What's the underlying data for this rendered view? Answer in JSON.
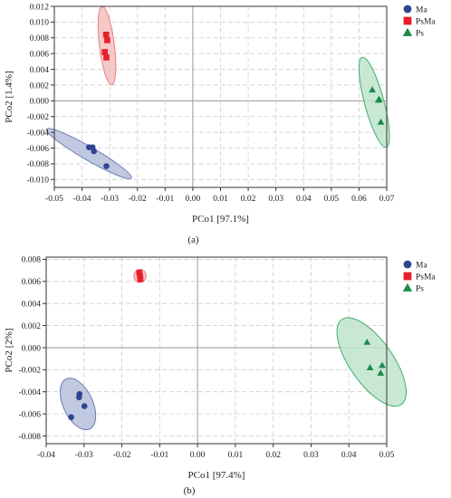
{
  "chart_data": [
    {
      "type": "scatter",
      "panel_label": "(a)",
      "xlabel": "PCo1 [97.1%]",
      "ylabel": "PCo2 [1.4%]",
      "xlim": [
        -0.05,
        0.07
      ],
      "ylim": [
        -0.011,
        0.012
      ],
      "xticks": [
        -0.05,
        -0.04,
        -0.03,
        -0.02,
        -0.01,
        0.0,
        0.01,
        0.02,
        0.03,
        0.04,
        0.05,
        0.06,
        0.07
      ],
      "yticks": [
        -0.01,
        -0.008,
        -0.006,
        -0.004,
        -0.002,
        0.0,
        0.002,
        0.004,
        0.006,
        0.008,
        0.01,
        0.012
      ],
      "xtick_labels": [
        "-0.05",
        "-0.04",
        "-0.03",
        "-0.02",
        "-0.01",
        "0.00",
        "0.01",
        "0.02",
        "0.03",
        "0.04",
        "0.05",
        "0.06",
        "0.07"
      ],
      "ytick_labels": [
        "-0.010",
        "-0.008",
        "-0.006",
        "-0.004",
        "-0.002",
        "0.000",
        "0.002",
        "0.004",
        "0.006",
        "0.008",
        "0.010",
        "0.012"
      ],
      "grid": true,
      "legend_position": "top-right",
      "series": [
        {
          "name": "Ma",
          "color": "#2e4591",
          "marker": "circle",
          "points": [
            [
              -0.0375,
              -0.0059
            ],
            [
              -0.0362,
              -0.0059
            ],
            [
              -0.0357,
              -0.0064
            ],
            [
              -0.0312,
              -0.0083
            ]
          ],
          "ellipse": {
            "center": [
              -0.0375,
              -0.0067
            ],
            "rx": 0.0177,
            "ry": 0.00085,
            "angle_deg": 30,
            "fill": "#b5bfd9",
            "stroke": "#6d7db5"
          }
        },
        {
          "name": "PsMa",
          "color": "#e8202a",
          "marker": "square",
          "points": [
            [
              -0.0313,
              0.0084
            ],
            [
              -0.0309,
              0.0077
            ],
            [
              -0.0318,
              0.0062
            ],
            [
              -0.0312,
              0.0055
            ]
          ],
          "ellipse": {
            "center": [
              -0.031,
              0.007
            ],
            "rx": 0.0027,
            "ry": 0.005,
            "angle_deg": -7,
            "fill": "#f5c0c0",
            "stroke": "#e57f86"
          }
        },
        {
          "name": "Ps",
          "color": "#1a8a4d",
          "marker": "triangle",
          "points": [
            [
              0.0648,
              0.0014
            ],
            [
              0.0673,
              0.0002
            ],
            [
              0.067,
              0.0001
            ],
            [
              0.0679,
              -0.0027
            ]
          ],
          "ellipse": {
            "center": [
              0.0655,
              -0.00018
            ],
            "rx": 0.0035,
            "ry": 0.0059,
            "angle_deg": -15,
            "fill": "#bfe4cc",
            "stroke": "#3fae6c"
          }
        }
      ]
    },
    {
      "type": "scatter",
      "panel_label": "(b)",
      "xlabel": "PCo1 [97.4%]",
      "ylabel": "PCo2 [2%]",
      "xlim": [
        -0.04,
        0.05
      ],
      "ylim": [
        -0.0087,
        0.0082
      ],
      "xticks": [
        -0.04,
        -0.03,
        -0.02,
        -0.01,
        0.0,
        0.01,
        0.02,
        0.03,
        0.04,
        0.05
      ],
      "yticks": [
        -0.008,
        -0.006,
        -0.004,
        -0.002,
        0.0,
        0.002,
        0.004,
        0.006,
        0.008
      ],
      "xtick_labels": [
        "-0.04",
        "-0.03",
        "-0.02",
        "-0.01",
        "0.00",
        "0.01",
        "0.02",
        "0.03",
        "0.04",
        "0.05"
      ],
      "ytick_labels": [
        "-0.008",
        "-0.006",
        "-0.004",
        "-0.002",
        "0.000",
        "0.002",
        "0.004",
        "0.006",
        "0.008"
      ],
      "grid": true,
      "legend_position": "top-right",
      "series": [
        {
          "name": "Ma",
          "color": "#2e4591",
          "marker": "circle",
          "points": [
            [
              -0.0312,
              -0.0042
            ],
            [
              -0.0313,
              -0.0045
            ],
            [
              -0.0299,
              -0.0053
            ],
            [
              -0.0334,
              -0.0063
            ]
          ],
          "ellipse": {
            "center": [
              -0.0316,
              -0.0051
            ],
            "rx": 0.0039,
            "ry": 0.0025,
            "angle_deg": -25,
            "fill": "#b5bfd9",
            "stroke": "#6d7db5"
          }
        },
        {
          "name": "PsMa",
          "color": "#e8202a",
          "marker": "square",
          "points": [
            [
              -0.0154,
              0.0068
            ],
            [
              -0.0152,
              0.0065
            ],
            [
              -0.0151,
              0.0062
            ]
          ],
          "ellipse": {
            "center": [
              -0.0152,
              0.0065
            ],
            "rx": 0.0017,
            "ry": 0.00055,
            "angle_deg": -80,
            "fill": "#f5c0c0",
            "stroke": "#e57f86"
          }
        },
        {
          "name": "Ps",
          "color": "#1a8a4d",
          "marker": "triangle",
          "points": [
            [
              0.0448,
              0.0005
            ],
            [
              0.0488,
              -0.0016
            ],
            [
              0.0456,
              -0.0018
            ],
            [
              0.0484,
              -0.0023
            ]
          ],
          "ellipse": {
            "center": [
              0.046,
              -0.0013
            ],
            "rx": 0.0057,
            "ry": 0.0047,
            "angle_deg": -35,
            "fill": "#bfe4cc",
            "stroke": "#3fae6c"
          }
        }
      ]
    }
  ]
}
